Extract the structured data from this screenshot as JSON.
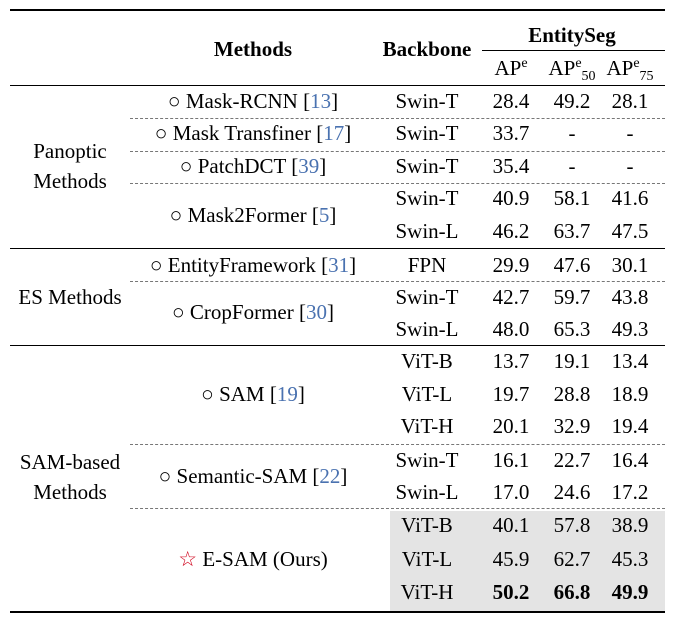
{
  "header": {
    "methods": "Methods",
    "backbone": "Backbone",
    "dataset": "EntitySeg",
    "ap": {
      "base": "AP",
      "sup": "e",
      "sub": ""
    },
    "ap50": {
      "base": "AP",
      "sup": "e",
      "sub": "50"
    },
    "ap75": {
      "base": "AP",
      "sup": "e",
      "sub": "75"
    }
  },
  "groups": [
    {
      "line1": "Panoptic",
      "line2": "Methods"
    },
    {
      "line1": "ES Methods",
      "line2": ""
    },
    {
      "line1": "SAM-based",
      "line2": "Methods"
    }
  ],
  "methods": [
    {
      "marker": "○",
      "name": "Mask-RCNN",
      "ref": "13"
    },
    {
      "marker": "○",
      "name": "Mask Transfiner",
      "ref": "17"
    },
    {
      "marker": "○",
      "name": "PatchDCT",
      "ref": "39"
    },
    {
      "marker": "○",
      "name": "Mask2Former",
      "ref": "5"
    },
    {
      "marker": "○",
      "name": "EntityFramework",
      "ref": "31"
    },
    {
      "marker": "○",
      "name": "CropFormer",
      "ref": "30"
    },
    {
      "marker": "○",
      "name": "SAM",
      "ref": "19"
    },
    {
      "marker": "○",
      "name": "Semantic-SAM",
      "ref": "22"
    },
    {
      "marker": "☆",
      "name": "E-SAM (Ours)",
      "ref": ""
    }
  ],
  "rows": [
    {
      "backbone": "Swin-T",
      "ap": "28.4",
      "ap50": "49.2",
      "ap75": "28.1"
    },
    {
      "backbone": "Swin-T",
      "ap": "33.7",
      "ap50": "-",
      "ap75": "-"
    },
    {
      "backbone": "Swin-T",
      "ap": "35.4",
      "ap50": "-",
      "ap75": "-"
    },
    {
      "backbone": "Swin-T",
      "ap": "40.9",
      "ap50": "58.1",
      "ap75": "41.6"
    },
    {
      "backbone": "Swin-L",
      "ap": "46.2",
      "ap50": "63.7",
      "ap75": "47.5"
    },
    {
      "backbone": "FPN",
      "ap": "29.9",
      "ap50": "47.6",
      "ap75": "30.1"
    },
    {
      "backbone": "Swin-T",
      "ap": "42.7",
      "ap50": "59.7",
      "ap75": "43.8"
    },
    {
      "backbone": "Swin-L",
      "ap": "48.0",
      "ap50": "65.3",
      "ap75": "49.3"
    },
    {
      "backbone": "ViT-B",
      "ap": "13.7",
      "ap50": "19.1",
      "ap75": "13.4"
    },
    {
      "backbone": "ViT-L",
      "ap": "19.7",
      "ap50": "28.8",
      "ap75": "18.9"
    },
    {
      "backbone": "ViT-H",
      "ap": "20.1",
      "ap50": "32.9",
      "ap75": "19.4"
    },
    {
      "backbone": "Swin-T",
      "ap": "16.1",
      "ap50": "22.7",
      "ap75": "16.4"
    },
    {
      "backbone": "Swin-L",
      "ap": "17.0",
      "ap50": "24.6",
      "ap75": "17.2"
    },
    {
      "backbone": "ViT-B",
      "ap": "40.1",
      "ap50": "57.8",
      "ap75": "38.9"
    },
    {
      "backbone": "ViT-L",
      "ap": "45.9",
      "ap50": "62.7",
      "ap75": "45.3"
    },
    {
      "backbone": "ViT-H",
      "ap": "50.2",
      "ap50": "66.8",
      "ap75": "49.9"
    }
  ],
  "colors": {
    "highlight_row_bg": "#e4e4e4",
    "reference_link": "#4a72b0",
    "ours_star": "#d0021b"
  }
}
